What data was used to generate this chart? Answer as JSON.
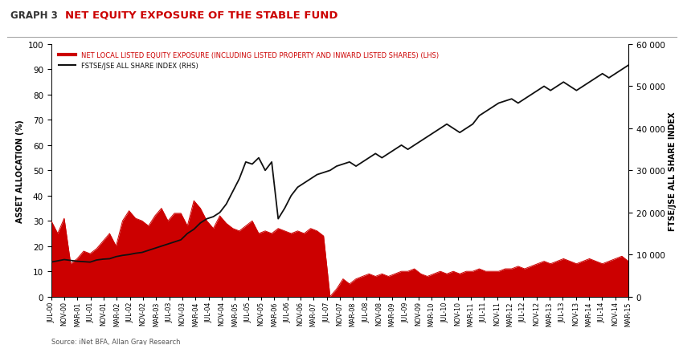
{
  "title": "NET EQUITY EXPOSURE OF THE STABLE FUND",
  "graph_label": "GRAPH 3",
  "source": "Source: iNet BFA, Allan Gray Research",
  "legend1": "NET LOCAL LISTED EQUITY EXPOSURE (INCLUDING LISTED PROPERTY AND INWARD LISTED SHARES) (LHS)",
  "legend2": "FSTSE/JSE ALL SHARE INDEX (RHS)",
  "ylabel_left": "ASSET ALLOCATION (%)",
  "ylabel_right": "FTSE/JSE ALL SHARE INDEX",
  "ylim_left": [
    0,
    100
  ],
  "ylim_right": [
    0,
    60000
  ],
  "yticks_left": [
    0,
    10,
    20,
    30,
    40,
    50,
    60,
    70,
    80,
    90,
    100
  ],
  "yticks_right": [
    0,
    10000,
    20000,
    30000,
    40000,
    50000,
    60000
  ],
  "ytick_labels_right": [
    "0",
    "10 000",
    "20 000",
    "30 000",
    "40 000",
    "50 000",
    "60 000"
  ],
  "color_fill": "#cc0000",
  "color_line": "#cc0000",
  "color_index": "#111111",
  "background": "#ffffff",
  "title_color": "#cc0000",
  "graph_label_color": "#333333",
  "x_labels": [
    "JUL-00",
    "NOV-00",
    "MAR-01",
    "JUL-01",
    "NOV-01",
    "MAR-02",
    "JUL-02",
    "NOV-02",
    "MAR-03",
    "JUL-03",
    "NOV-03",
    "MAR-04",
    "JUL-04",
    "NOV-04",
    "MAR-05",
    "JUL-05",
    "NOV-05",
    "MAR-06",
    "JUL-06",
    "NOV-06",
    "MAR-07",
    "JUL-07",
    "NOV-07",
    "MAR-08",
    "JUL-08",
    "NOV-08",
    "MAR-09",
    "JUL-09",
    "NOV-09",
    "MAR-10",
    "JUL-10",
    "NOV-10",
    "MAR-11",
    "JUL-11",
    "NOV-11",
    "MAR-12",
    "JUL-12",
    "NOV-12",
    "MAR-13",
    "JUL-13",
    "NOV-13",
    "MAR-14",
    "JUL-14",
    "NOV-14",
    "MAR-15"
  ],
  "equity_exposure": [
    30,
    25,
    31,
    13,
    15,
    18,
    17,
    19,
    22,
    25,
    20,
    30,
    34,
    31,
    30,
    28,
    32,
    35,
    30,
    33,
    33,
    28,
    38,
    35,
    30,
    27,
    32,
    29,
    27,
    26,
    28,
    30,
    25,
    26,
    25,
    27,
    26,
    25,
    26,
    25,
    27,
    26,
    24,
    0,
    3,
    7,
    5,
    7,
    8,
    9,
    8,
    9,
    8,
    9,
    10,
    10,
    11,
    9,
    8,
    9,
    10,
    9,
    10,
    9,
    10,
    10,
    11,
    10,
    10,
    10,
    11,
    11,
    12,
    11,
    12,
    13,
    14,
    13,
    14,
    15,
    14,
    13,
    14,
    15,
    14,
    13,
    14,
    15,
    16,
    14
  ],
  "ftse_index": [
    8200,
    8500,
    8800,
    8600,
    8400,
    8300,
    8200,
    8700,
    8900,
    9000,
    9500,
    9800,
    10000,
    10300,
    10500,
    11000,
    11500,
    12000,
    12500,
    13000,
    13500,
    15000,
    16000,
    17500,
    18500,
    19000,
    20000,
    22000,
    25000,
    28000,
    32000,
    31500,
    33000,
    30000,
    32000,
    18500,
    21000,
    24000,
    26000,
    27000,
    28000,
    29000,
    29500,
    30000,
    31000,
    31500,
    32000,
    31000,
    32000,
    33000,
    34000,
    33000,
    34000,
    35000,
    36000,
    35000,
    36000,
    37000,
    38000,
    39000,
    40000,
    41000,
    40000,
    39000,
    40000,
    41000,
    43000,
    44000,
    45000,
    46000,
    46500,
    47000,
    46000,
    47000,
    48000,
    49000,
    50000,
    49000,
    50000,
    51000,
    50000,
    49000,
    50000,
    51000,
    52000,
    53000,
    52000,
    53000,
    54000,
    55000
  ]
}
